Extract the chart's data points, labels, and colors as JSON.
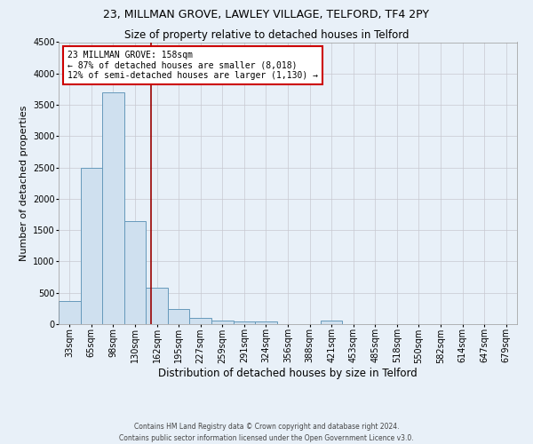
{
  "title1": "23, MILLMAN GROVE, LAWLEY VILLAGE, TELFORD, TF4 2PY",
  "title2": "Size of property relative to detached houses in Telford",
  "xlabel": "Distribution of detached houses by size in Telford",
  "ylabel": "Number of detached properties",
  "footer1": "Contains HM Land Registry data © Crown copyright and database right 2024.",
  "footer2": "Contains public sector information licensed under the Open Government Licence v3.0.",
  "categories": [
    "33sqm",
    "65sqm",
    "98sqm",
    "130sqm",
    "162sqm",
    "195sqm",
    "227sqm",
    "259sqm",
    "291sqm",
    "324sqm",
    "356sqm",
    "388sqm",
    "421sqm",
    "453sqm",
    "485sqm",
    "518sqm",
    "550sqm",
    "582sqm",
    "614sqm",
    "647sqm",
    "679sqm"
  ],
  "values": [
    375,
    2500,
    3700,
    1640,
    580,
    240,
    105,
    60,
    40,
    40,
    0,
    0,
    55,
    0,
    0,
    0,
    0,
    0,
    0,
    0,
    0
  ],
  "bar_color": "#cfe0ef",
  "bar_edge_color": "#6699bb",
  "ylim": [
    0,
    4500
  ],
  "yticks": [
    0,
    500,
    1000,
    1500,
    2000,
    2500,
    3000,
    3500,
    4000,
    4500
  ],
  "property_label": "23 MILLMAN GROVE: 158sqm",
  "annotation_line1": "← 87% of detached houses are smaller (8,018)",
  "annotation_line2": "12% of semi-detached houses are larger (1,130) →",
  "vline_x_index": 3.75,
  "vline_color": "#990000",
  "annotation_box_color": "#ffffff",
  "annotation_box_edge": "#cc0000",
  "bg_color": "#e8f0f8",
  "grid_color": "#c8c8d0",
  "title1_fontsize": 9,
  "title2_fontsize": 8.5,
  "xlabel_fontsize": 8.5,
  "ylabel_fontsize": 8,
  "tick_fontsize": 7,
  "ann_fontsize": 7,
  "footer_fontsize": 5.5
}
